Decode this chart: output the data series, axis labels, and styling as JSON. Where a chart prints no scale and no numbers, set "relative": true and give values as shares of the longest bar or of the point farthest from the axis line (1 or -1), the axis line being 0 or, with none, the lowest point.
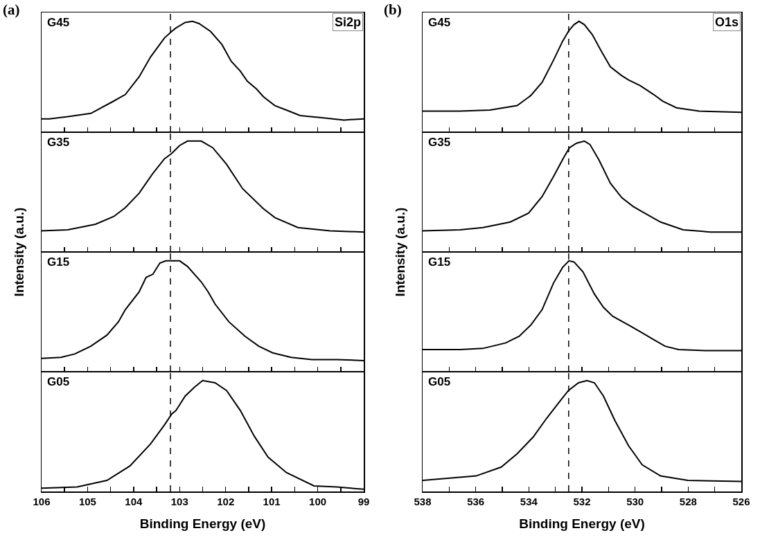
{
  "chart_data": [
    {
      "type": "line",
      "title": "(a)",
      "relative": true,
      "xlim": [
        106,
        99
      ],
      "xticks": [
        {
          "value": 106,
          "label": null
        },
        {
          "value": 105.5,
          "label": null
        },
        {
          "value": 105,
          "label": null
        },
        {
          "value": 104.5,
          "label": null
        },
        {
          "value": 104,
          "label": null
        },
        {
          "value": 103.5,
          "label": null
        },
        {
          "value": 103,
          "label": null
        },
        {
          "value": 102.5,
          "label": null
        },
        {
          "value": 102,
          "label": null
        },
        {
          "value": 101.5,
          "label": null
        },
        {
          "value": 101,
          "label": null
        },
        {
          "value": 100.5,
          "label": null
        },
        {
          "value": 100,
          "label": null
        },
        {
          "value": 99.5,
          "label": null
        },
        {
          "value": 99,
          "label": null
        }
      ],
      "tick_labels": false,
      "ylabel": "Intensity (a.u.)",
      "annotations": [
        "G45",
        "Si2p"
      ],
      "ref_lines": [
        {
          "axis": "x",
          "value": 103.2,
          "line_style": "dashed"
        }
      ],
      "series": [
        {
          "color": "#000000",
          "x": [
            106.0,
            105.83,
            105.43,
            104.93,
            104.48,
            104.18,
            103.88,
            103.63,
            103.33,
            103.17,
            103.08,
            102.88,
            102.72,
            102.58,
            102.33,
            102.08,
            101.88,
            101.68,
            101.53,
            101.33,
            101.18,
            100.93,
            100.68,
            100.38,
            99.88,
            99.43,
            99.0
          ],
          "values": [
            0.12,
            0.12,
            0.14,
            0.17,
            0.27,
            0.34,
            0.5,
            0.68,
            0.85,
            0.91,
            0.94,
            0.99,
            1.0,
            0.98,
            0.91,
            0.79,
            0.64,
            0.55,
            0.46,
            0.39,
            0.32,
            0.24,
            0.2,
            0.15,
            0.13,
            0.11,
            0.12
          ]
        }
      ]
    },
    {
      "type": "line",
      "relative": true,
      "xlim": [
        106,
        99
      ],
      "xticks": [
        {
          "value": 106,
          "label": null
        },
        {
          "value": 105.5,
          "label": null
        },
        {
          "value": 105,
          "label": null
        },
        {
          "value": 104.5,
          "label": null
        },
        {
          "value": 104,
          "label": null
        },
        {
          "value": 103.5,
          "label": null
        },
        {
          "value": 103,
          "label": null
        },
        {
          "value": 102.5,
          "label": null
        },
        {
          "value": 102,
          "label": null
        },
        {
          "value": 101.5,
          "label": null
        },
        {
          "value": 101,
          "label": null
        },
        {
          "value": 100.5,
          "label": null
        },
        {
          "value": 100,
          "label": null
        },
        {
          "value": 99.5,
          "label": null
        },
        {
          "value": 99,
          "label": null
        }
      ],
      "tick_labels": false,
      "annotations": [
        "G35"
      ],
      "ref_lines": [
        {
          "axis": "x",
          "value": 103.2,
          "line_style": "dashed"
        }
      ],
      "series": [
        {
          "color": "#000000",
          "x": [
            106.0,
            105.43,
            104.83,
            104.43,
            104.18,
            103.88,
            103.58,
            103.33,
            103.17,
            103.0,
            102.83,
            102.53,
            102.28,
            101.98,
            101.63,
            101.18,
            100.93,
            100.43,
            99.73,
            99.0
          ],
          "values": [
            0.19,
            0.2,
            0.25,
            0.32,
            0.4,
            0.53,
            0.71,
            0.84,
            0.89,
            0.96,
            1.0,
            1.0,
            0.94,
            0.79,
            0.57,
            0.39,
            0.31,
            0.22,
            0.19,
            0.18
          ]
        }
      ]
    },
    {
      "type": "line",
      "relative": true,
      "xlim": [
        106,
        99
      ],
      "xticks": [
        {
          "value": 106,
          "label": null
        },
        {
          "value": 105.5,
          "label": null
        },
        {
          "value": 105,
          "label": null
        },
        {
          "value": 104.5,
          "label": null
        },
        {
          "value": 104,
          "label": null
        },
        {
          "value": 103.5,
          "label": null
        },
        {
          "value": 103,
          "label": null
        },
        {
          "value": 102.5,
          "label": null
        },
        {
          "value": 102,
          "label": null
        },
        {
          "value": 101.5,
          "label": null
        },
        {
          "value": 101,
          "label": null
        },
        {
          "value": 100.5,
          "label": null
        },
        {
          "value": 100,
          "label": null
        },
        {
          "value": 99.5,
          "label": null
        },
        {
          "value": 99,
          "label": null
        }
      ],
      "tick_labels": false,
      "annotations": [
        "G15"
      ],
      "ref_lines": [
        {
          "axis": "x",
          "value": 103.2,
          "line_style": "dashed"
        }
      ],
      "series": [
        {
          "color": "#000000",
          "x": [
            106.0,
            105.58,
            105.28,
            104.93,
            104.58,
            104.33,
            104.18,
            103.88,
            103.73,
            103.58,
            103.43,
            103.3,
            103.0,
            102.83,
            102.53,
            102.38,
            102.23,
            101.93,
            101.58,
            101.28,
            100.98,
            100.58,
            100.13,
            99.58,
            99.0
          ],
          "values": [
            0.12,
            0.13,
            0.16,
            0.23,
            0.33,
            0.45,
            0.56,
            0.72,
            0.85,
            0.88,
            0.98,
            1.0,
            1.0,
            0.95,
            0.81,
            0.72,
            0.61,
            0.45,
            0.32,
            0.23,
            0.17,
            0.13,
            0.11,
            0.11,
            0.1
          ]
        }
      ]
    },
    {
      "type": "line",
      "relative": true,
      "xlim": [
        106,
        99
      ],
      "xticks": [
        106,
        {
          "value": 105.5,
          "label": null
        },
        105,
        {
          "value": 104.5,
          "label": null
        },
        104,
        {
          "value": 103.5,
          "label": null
        },
        103,
        {
          "value": 102.5,
          "label": null
        },
        102,
        {
          "value": 101.5,
          "label": null
        },
        101,
        {
          "value": 100.5,
          "label": null
        },
        100,
        {
          "value": 99.5,
          "label": null
        },
        99
      ],
      "tick_labels": "x",
      "xlabel": "Binding Energy (eV)",
      "annotations": [
        "G05"
      ],
      "ref_lines": [
        {
          "axis": "x",
          "value": 103.2,
          "line_style": "dashed"
        }
      ],
      "series": [
        {
          "color": "#000000",
          "x": [
            106.0,
            105.23,
            104.58,
            104.08,
            103.63,
            103.33,
            103.17,
            103.08,
            102.88,
            102.68,
            102.5,
            102.23,
            101.98,
            101.68,
            101.38,
            101.08,
            100.68,
            100.08,
            99.58,
            99.0
          ],
          "values": [
            0.03,
            0.04,
            0.1,
            0.23,
            0.43,
            0.6,
            0.7,
            0.73,
            0.86,
            0.94,
            1.0,
            0.98,
            0.91,
            0.73,
            0.5,
            0.31,
            0.17,
            0.05,
            0.04,
            0.02
          ]
        }
      ]
    },
    {
      "type": "line",
      "title": "(b)",
      "relative": true,
      "xlim": [
        538,
        526
      ],
      "xticks": [
        {
          "value": 538,
          "label": null
        },
        {
          "value": 537,
          "label": null
        },
        {
          "value": 536,
          "label": null
        },
        {
          "value": 535,
          "label": null
        },
        {
          "value": 534,
          "label": null
        },
        {
          "value": 533,
          "label": null
        },
        {
          "value": 532,
          "label": null
        },
        {
          "value": 531,
          "label": null
        },
        {
          "value": 530,
          "label": null
        },
        {
          "value": 529,
          "label": null
        },
        {
          "value": 528,
          "label": null
        },
        {
          "value": 527,
          "label": null
        },
        {
          "value": 526,
          "label": null
        }
      ],
      "tick_labels": false,
      "ylabel": "Intensity (a.u.)",
      "annotations": [
        "G45",
        "O1s"
      ],
      "ref_lines": [
        {
          "axis": "x",
          "value": 532.5,
          "line_style": "dashed"
        }
      ],
      "series": [
        {
          "color": "#000000",
          "x": [
            538.0,
            536.59,
            535.47,
            534.44,
            533.93,
            533.5,
            533.07,
            532.73,
            532.51,
            532.3,
            532.11,
            531.91,
            531.61,
            531.27,
            530.93,
            530.5,
            530.24,
            529.81,
            529.3,
            528.96,
            528.44,
            527.59,
            526.0
          ],
          "values": [
            0.19,
            0.19,
            0.2,
            0.24,
            0.33,
            0.45,
            0.65,
            0.82,
            0.91,
            0.97,
            1.0,
            0.97,
            0.88,
            0.73,
            0.59,
            0.51,
            0.47,
            0.42,
            0.34,
            0.28,
            0.22,
            0.19,
            0.18
          ]
        }
      ]
    },
    {
      "type": "line",
      "relative": true,
      "xlim": [
        538,
        526
      ],
      "xticks": [
        {
          "value": 538,
          "label": null
        },
        {
          "value": 537,
          "label": null
        },
        {
          "value": 536,
          "label": null
        },
        {
          "value": 535,
          "label": null
        },
        {
          "value": 534,
          "label": null
        },
        {
          "value": 533,
          "label": null
        },
        {
          "value": 532,
          "label": null
        },
        {
          "value": 531,
          "label": null
        },
        {
          "value": 530,
          "label": null
        },
        {
          "value": 529,
          "label": null
        },
        {
          "value": 528,
          "label": null
        },
        {
          "value": 527,
          "label": null
        },
        {
          "value": 526,
          "label": null
        }
      ],
      "tick_labels": false,
      "annotations": [
        "G35"
      ],
      "ref_lines": [
        {
          "axis": "x",
          "value": 532.5,
          "line_style": "dashed"
        }
      ],
      "series": [
        {
          "color": "#000000",
          "x": [
            538.0,
            536.59,
            535.73,
            534.7,
            534.01,
            533.5,
            533.07,
            532.69,
            532.47,
            532.21,
            531.91,
            531.7,
            531.36,
            530.93,
            530.5,
            530.07,
            529.64,
            529.04,
            528.19,
            527.16,
            526.0
          ],
          "values": [
            0.19,
            0.2,
            0.22,
            0.27,
            0.35,
            0.5,
            0.68,
            0.85,
            0.94,
            0.98,
            1.0,
            0.97,
            0.83,
            0.62,
            0.49,
            0.41,
            0.35,
            0.27,
            0.2,
            0.18,
            0.18
          ]
        }
      ]
    },
    {
      "type": "line",
      "relative": true,
      "xlim": [
        538,
        526
      ],
      "xticks": [
        {
          "value": 538,
          "label": null
        },
        {
          "value": 537,
          "label": null
        },
        {
          "value": 536,
          "label": null
        },
        {
          "value": 535,
          "label": null
        },
        {
          "value": 534,
          "label": null
        },
        {
          "value": 533,
          "label": null
        },
        {
          "value": 532,
          "label": null
        },
        {
          "value": 531,
          "label": null
        },
        {
          "value": 530,
          "label": null
        },
        {
          "value": 529,
          "label": null
        },
        {
          "value": 528,
          "label": null
        },
        {
          "value": 527,
          "label": null
        },
        {
          "value": 526,
          "label": null
        }
      ],
      "tick_labels": false,
      "annotations": [
        "G15"
      ],
      "ref_lines": [
        {
          "axis": "x",
          "value": 532.5,
          "line_style": "dashed"
        }
      ],
      "series": [
        {
          "color": "#000000",
          "x": [
            538.0,
            536.59,
            535.73,
            534.87,
            534.36,
            533.93,
            533.5,
            533.07,
            532.73,
            532.49,
            532.3,
            531.96,
            531.53,
            531.19,
            530.84,
            530.16,
            529.73,
            529.3,
            528.87,
            528.36,
            527.33,
            526.0
          ],
          "values": [
            0.2,
            0.2,
            0.21,
            0.26,
            0.32,
            0.42,
            0.56,
            0.8,
            0.94,
            1.0,
            0.99,
            0.9,
            0.7,
            0.58,
            0.5,
            0.41,
            0.35,
            0.29,
            0.23,
            0.2,
            0.19,
            0.19
          ]
        }
      ]
    },
    {
      "type": "line",
      "relative": true,
      "xlim": [
        538,
        526
      ],
      "xticks": [
        538,
        {
          "value": 537,
          "label": null
        },
        536,
        {
          "value": 535,
          "label": null
        },
        534,
        {
          "value": 533,
          "label": null
        },
        532,
        {
          "value": 531,
          "label": null
        },
        530,
        {
          "value": 529,
          "label": null
        },
        528,
        {
          "value": 527,
          "label": null
        },
        526
      ],
      "tick_labels": "x",
      "xlabel": "Binding Energy (eV)",
      "annotations": [
        "G05"
      ],
      "ref_lines": [
        {
          "axis": "x",
          "value": 532.5,
          "line_style": "dashed"
        }
      ],
      "series": [
        {
          "color": "#000000",
          "x": [
            538.0,
            535.99,
            535.04,
            534.44,
            533.84,
            533.33,
            532.81,
            532.51,
            532.13,
            531.81,
            531.53,
            531.19,
            530.76,
            530.24,
            529.73,
            529.04,
            528.01,
            526.0
          ],
          "values": [
            0.1,
            0.14,
            0.22,
            0.34,
            0.49,
            0.66,
            0.82,
            0.91,
            0.98,
            1.0,
            0.98,
            0.86,
            0.64,
            0.41,
            0.24,
            0.14,
            0.1,
            0.09
          ]
        }
      ]
    }
  ]
}
